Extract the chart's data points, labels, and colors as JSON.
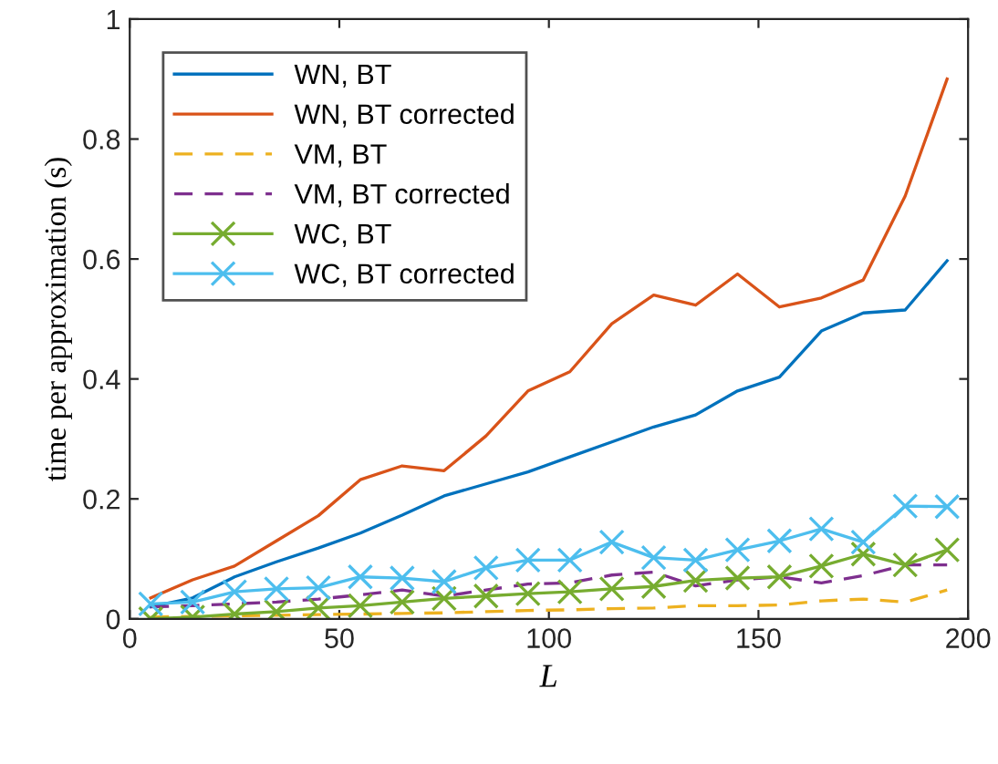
{
  "chart_data": {
    "type": "line",
    "xlabel": "L",
    "ylabel": "time per approximation (s)",
    "xlim": [
      0,
      200
    ],
    "ylim": [
      0,
      1
    ],
    "xticks": [
      0,
      50,
      100,
      150,
      200
    ],
    "yticks": [
      0,
      0.2,
      0.4,
      0.6,
      0.8,
      1
    ],
    "grid": false,
    "legend": "top left",
    "x": [
      5,
      15,
      25,
      35,
      45,
      55,
      65,
      75,
      85,
      95,
      105,
      115,
      125,
      135,
      145,
      155,
      165,
      175,
      185,
      195
    ],
    "series": [
      {
        "name": "WN, BT",
        "color": "#0072bd",
        "line_style": "solid",
        "marker": "none",
        "values": [
          0.02,
          0.035,
          0.07,
          0.095,
          0.118,
          0.143,
          0.173,
          0.205,
          0.225,
          0.245,
          0.27,
          0.295,
          0.32,
          0.34,
          0.38,
          0.403,
          0.48,
          0.51,
          0.515,
          0.597
        ]
      },
      {
        "name": "WN, BT corrected",
        "color": "#d95319",
        "line_style": "solid",
        "marker": "none",
        "values": [
          0.035,
          0.065,
          0.088,
          0.13,
          0.172,
          0.232,
          0.255,
          0.247,
          0.305,
          0.38,
          0.412,
          0.492,
          0.54,
          0.523,
          0.575,
          0.52,
          0.535,
          0.565,
          0.705,
          0.9
        ]
      },
      {
        "name": "VM, BT",
        "color": "#edb120",
        "line_style": "dashed",
        "marker": "none",
        "values": [
          0.003,
          0.004,
          0.005,
          0.006,
          0.007,
          0.008,
          0.009,
          0.01,
          0.012,
          0.014,
          0.015,
          0.017,
          0.018,
          0.022,
          0.022,
          0.023,
          0.03,
          0.033,
          0.028,
          0.048
        ]
      },
      {
        "name": "VM, BT corrected",
        "color": "#7e2f8e",
        "line_style": "dashed",
        "marker": "none",
        "values": [
          0.02,
          0.022,
          0.025,
          0.028,
          0.033,
          0.04,
          0.048,
          0.038,
          0.048,
          0.058,
          0.06,
          0.073,
          0.078,
          0.055,
          0.065,
          0.07,
          0.06,
          0.072,
          0.09,
          0.09
        ]
      },
      {
        "name": "WC, BT",
        "color": "#77ac30",
        "line_style": "solid",
        "marker": "cross",
        "values": [
          0.0,
          0.003,
          0.008,
          0.012,
          0.018,
          0.022,
          0.028,
          0.034,
          0.038,
          0.042,
          0.045,
          0.05,
          0.054,
          0.064,
          0.068,
          0.07,
          0.088,
          0.108,
          0.09,
          0.115
        ]
      },
      {
        "name": "WC, BT corrected",
        "color": "#4dbeee",
        "line_style": "solid",
        "marker": "cross",
        "values": [
          0.025,
          0.028,
          0.045,
          0.05,
          0.052,
          0.07,
          0.068,
          0.062,
          0.085,
          0.098,
          0.098,
          0.128,
          0.102,
          0.098,
          0.115,
          0.13,
          0.15,
          0.128,
          0.188,
          0.187
        ]
      }
    ]
  }
}
